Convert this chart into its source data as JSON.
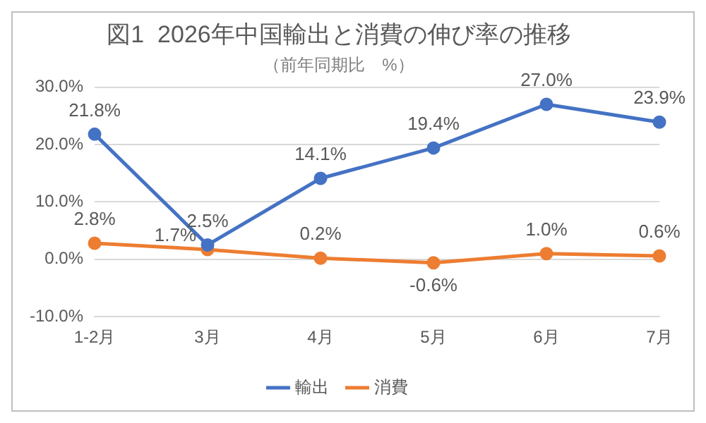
{
  "chart_data": {
    "type": "line",
    "title": "図1  2026年中国輸出と消費の伸び率の推移",
    "subtitle": "（前年同期比　%）",
    "categories": [
      "1-2月",
      "3月",
      "4月",
      "5月",
      "6月",
      "7月"
    ],
    "series": [
      {
        "name": "輸出",
        "color": "#4472c4",
        "values": [
          21.8,
          2.5,
          14.1,
          19.4,
          27.0,
          23.9
        ],
        "value_labels": [
          "21.8%",
          "2.5%",
          "14.1%",
          "19.4%",
          "27.0%",
          "23.9%"
        ]
      },
      {
        "name": "消費",
        "color": "#ed7d31",
        "values": [
          2.8,
          1.7,
          0.2,
          -0.6,
          1.0,
          0.6
        ],
        "value_labels": [
          "2.8%",
          "1.7%",
          "0.2%",
          "-0.6%",
          "1.0%",
          "0.6%"
        ]
      }
    ],
    "ylim": [
      -10,
      30
    ],
    "yticks": [
      {
        "value": -10,
        "label": "-10.0%"
      },
      {
        "value": 0,
        "label": "0.0%"
      },
      {
        "value": 10,
        "label": "10.0%"
      },
      {
        "value": 20,
        "label": "20.0%"
      },
      {
        "value": 30,
        "label": "30.0%"
      }
    ],
    "grid": "y",
    "legend": "bottom",
    "marker": "circle",
    "line_style": "solid"
  }
}
